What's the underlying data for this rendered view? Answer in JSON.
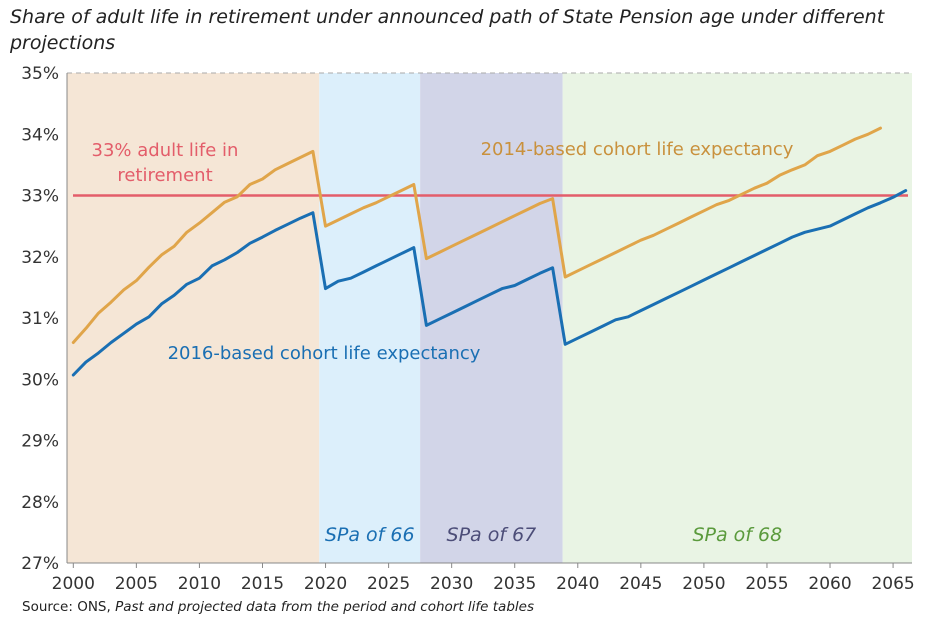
{
  "title": "Share of adult life in retirement under announced path of State Pension age under different projections",
  "source": {
    "prefix": "Source: ONS,",
    "italic": "Past and projected data from the period and cohort life tables"
  },
  "chart_data": {
    "type": "line",
    "ylim": [
      27,
      35
    ],
    "xlim": [
      1999.5,
      2066.5
    ],
    "x_ticks": [
      2000,
      2005,
      2010,
      2015,
      2020,
      2025,
      2030,
      2035,
      2040,
      2045,
      2050,
      2055,
      2060,
      2065
    ],
    "y_ticks": [
      {
        "value": 27,
        "label": "27%"
      },
      {
        "value": 28,
        "label": "28%"
      },
      {
        "value": 29,
        "label": "29%"
      },
      {
        "value": 30,
        "label": "30%"
      },
      {
        "value": 31,
        "label": "31%"
      },
      {
        "value": 32,
        "label": "32%"
      },
      {
        "value": 33,
        "label": "33%"
      },
      {
        "value": 34,
        "label": "34%"
      },
      {
        "value": 35,
        "label": "35%"
      }
    ],
    "regions": [
      {
        "from": 1999.5,
        "to": 2019.5,
        "color": "#f5e6d6",
        "label": ""
      },
      {
        "from": 2019.5,
        "to": 2027.5,
        "color": "#dceffb",
        "label": "SPa of 66",
        "label_color": "#1a6fb3"
      },
      {
        "from": 2027.5,
        "to": 2038.8,
        "color": "#d2d5e8",
        "label": "SPa of 67",
        "label_color": "#4c4d78"
      },
      {
        "from": 2038.8,
        "to": 2066.5,
        "color": "#e9f4e4",
        "label": "SPa of 68",
        "label_color": "#5a9a3c"
      }
    ],
    "reference": {
      "value": 33,
      "color": "#e35d6a",
      "label_line1": "33% adult life in",
      "label_line2": "retirement"
    },
    "series": [
      {
        "name": "2014-based cohort life expectancy",
        "color": "#e0a54a",
        "points": [
          [
            2000,
            30.6
          ],
          [
            2001,
            30.83
          ],
          [
            2002,
            31.08
          ],
          [
            2003,
            31.26
          ],
          [
            2004,
            31.46
          ],
          [
            2005,
            31.61
          ],
          [
            2006,
            31.83
          ],
          [
            2007,
            32.03
          ],
          [
            2008,
            32.17
          ],
          [
            2009,
            32.4
          ],
          [
            2010,
            32.55
          ],
          [
            2011,
            32.72
          ],
          [
            2012,
            32.89
          ],
          [
            2013,
            32.98
          ],
          [
            2014,
            33.18
          ],
          [
            2015,
            33.27
          ],
          [
            2016,
            33.42
          ],
          [
            2017,
            33.52
          ],
          [
            2018,
            33.62
          ],
          [
            2019,
            33.72
          ],
          [
            2020,
            32.5
          ],
          [
            2021,
            32.6
          ],
          [
            2022,
            32.7
          ],
          [
            2023,
            32.8
          ],
          [
            2024,
            32.88
          ],
          [
            2025,
            32.98
          ],
          [
            2026,
            33.08
          ],
          [
            2027,
            33.18
          ],
          [
            2028,
            31.97
          ],
          [
            2029,
            32.07
          ],
          [
            2030,
            32.17
          ],
          [
            2031,
            32.27
          ],
          [
            2032,
            32.37
          ],
          [
            2033,
            32.47
          ],
          [
            2034,
            32.57
          ],
          [
            2035,
            32.67
          ],
          [
            2036,
            32.77
          ],
          [
            2037,
            32.87
          ],
          [
            2038,
            32.95
          ],
          [
            2039,
            31.67
          ],
          [
            2040,
            31.77
          ],
          [
            2041,
            31.87
          ],
          [
            2042,
            31.97
          ],
          [
            2043,
            32.07
          ],
          [
            2044,
            32.17
          ],
          [
            2045,
            32.27
          ],
          [
            2046,
            32.35
          ],
          [
            2047,
            32.45
          ],
          [
            2048,
            32.55
          ],
          [
            2049,
            32.65
          ],
          [
            2050,
            32.75
          ],
          [
            2051,
            32.85
          ],
          [
            2052,
            32.92
          ],
          [
            2053,
            33.02
          ],
          [
            2054,
            33.12
          ],
          [
            2055,
            33.2
          ],
          [
            2056,
            33.33
          ],
          [
            2057,
            33.42
          ],
          [
            2058,
            33.5
          ],
          [
            2059,
            33.65
          ],
          [
            2060,
            33.72
          ],
          [
            2061,
            33.82
          ],
          [
            2062,
            33.92
          ],
          [
            2063,
            34.0
          ],
          [
            2064,
            34.1
          ]
        ]
      },
      {
        "name": "2016-based cohort life expectancy",
        "color": "#1a6fb3",
        "points": [
          [
            2000,
            30.07
          ],
          [
            2001,
            30.28
          ],
          [
            2002,
            30.43
          ],
          [
            2003,
            30.6
          ],
          [
            2004,
            30.75
          ],
          [
            2005,
            30.9
          ],
          [
            2006,
            31.02
          ],
          [
            2007,
            31.23
          ],
          [
            2008,
            31.37
          ],
          [
            2009,
            31.55
          ],
          [
            2010,
            31.65
          ],
          [
            2011,
            31.85
          ],
          [
            2012,
            31.95
          ],
          [
            2013,
            32.07
          ],
          [
            2014,
            32.22
          ],
          [
            2015,
            32.32
          ],
          [
            2016,
            32.43
          ],
          [
            2017,
            32.53
          ],
          [
            2018,
            32.63
          ],
          [
            2019,
            32.72
          ],
          [
            2020,
            31.48
          ],
          [
            2021,
            31.6
          ],
          [
            2022,
            31.65
          ],
          [
            2023,
            31.75
          ],
          [
            2024,
            31.85
          ],
          [
            2025,
            31.95
          ],
          [
            2026,
            32.05
          ],
          [
            2027,
            32.15
          ],
          [
            2028,
            30.88
          ],
          [
            2029,
            30.98
          ],
          [
            2030,
            31.08
          ],
          [
            2031,
            31.18
          ],
          [
            2032,
            31.28
          ],
          [
            2033,
            31.38
          ],
          [
            2034,
            31.48
          ],
          [
            2035,
            31.53
          ],
          [
            2036,
            31.63
          ],
          [
            2037,
            31.73
          ],
          [
            2038,
            31.82
          ],
          [
            2039,
            30.57
          ],
          [
            2040,
            30.67
          ],
          [
            2041,
            30.77
          ],
          [
            2042,
            30.87
          ],
          [
            2043,
            30.97
          ],
          [
            2044,
            31.02
          ],
          [
            2045,
            31.12
          ],
          [
            2046,
            31.22
          ],
          [
            2047,
            31.32
          ],
          [
            2048,
            31.42
          ],
          [
            2049,
            31.52
          ],
          [
            2050,
            31.62
          ],
          [
            2051,
            31.72
          ],
          [
            2052,
            31.82
          ],
          [
            2053,
            31.92
          ],
          [
            2054,
            32.02
          ],
          [
            2055,
            32.12
          ],
          [
            2056,
            32.22
          ],
          [
            2057,
            32.32
          ],
          [
            2058,
            32.4
          ],
          [
            2059,
            32.45
          ],
          [
            2060,
            32.5
          ],
          [
            2061,
            32.6
          ],
          [
            2062,
            32.7
          ],
          [
            2063,
            32.8
          ],
          [
            2064,
            32.88
          ],
          [
            2065,
            32.97
          ],
          [
            2066,
            33.08
          ]
        ]
      }
    ]
  }
}
